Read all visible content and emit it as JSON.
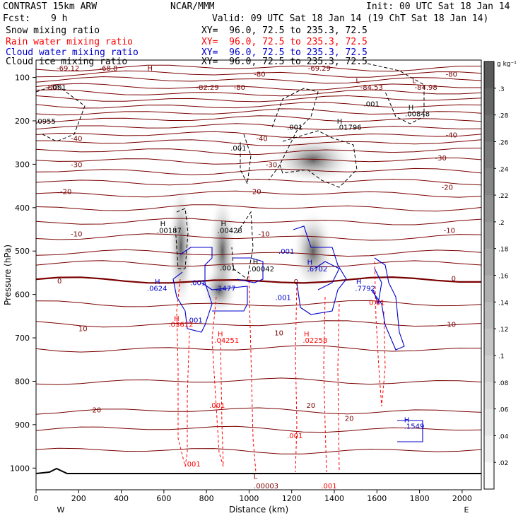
{
  "header": {
    "title": "CONTRAST 15km ARW",
    "fcst_label": "Fcst:",
    "fcst_value": "9 h",
    "center": "NCAR/MMM",
    "init": "Init: 00 UTC Sat 18 Jan 14",
    "valid": "Valid: 09 UTC Sat 18 Jan 14 (19 ChT Sat 18 Jan 14)"
  },
  "fields": [
    {
      "name": "Snow mixing ratio",
      "xy": "XY=  96.0, 72.5 to 235.3, 72.5",
      "color": "#000000"
    },
    {
      "name": "Rain water mixing ratio",
      "xy": "XY=  96.0, 72.5 to 235.3, 72.5",
      "color": "#ff0000"
    },
    {
      "name": "Cloud water mixing ratio",
      "xy": "XY=  96.0, 72.5 to 235.3, 72.5",
      "color": "#0000cc"
    },
    {
      "name": "Cloud ice mixing ratio",
      "xy": "XY=  96.0, 72.5 to 235.3, 72.5",
      "color": "#000000"
    }
  ],
  "colorbar": {
    "units": "g kg⁻¹",
    "ticks": [
      ".3",
      ".28",
      ".26",
      ".24",
      ".22",
      ".2",
      ".18",
      ".16",
      ".14",
      ".12",
      ".1",
      ".08",
      ".06",
      ".04",
      ".02"
    ]
  },
  "chart_data": {
    "type": "contour",
    "xlabel": "Distance (km)",
    "ylabel": "Pressure (hPa)",
    "xlim": [
      0,
      2090
    ],
    "ylim": [
      1050,
      60
    ],
    "x_ticks": [
      0,
      200,
      400,
      600,
      800,
      1000,
      1200,
      1400,
      1600,
      1800,
      2000
    ],
    "y_ticks": [
      100,
      200,
      300,
      400,
      500,
      600,
      700,
      800,
      900,
      1000
    ],
    "x_end_labels": {
      "left": "W",
      "right": "E"
    },
    "temperature_contours": {
      "color": "#7a0000",
      "labels": [
        {
          "text": "-69.12",
          "x": 150,
          "p": 78
        },
        {
          "text": "-68.8",
          "x": 340,
          "p": 78
        },
        {
          "text": "-69.29",
          "x": 1330,
          "p": 78
        },
        {
          "text": "-80",
          "x": 1050,
          "p": 92
        },
        {
          "text": "-80",
          "x": 1950,
          "p": 92
        },
        {
          "text": "-80",
          "x": 70,
          "p": 122
        },
        {
          "text": "-82.29",
          "x": 805,
          "p": 122
        },
        {
          "text": "-80",
          "x": 955,
          "p": 122
        },
        {
          "text": "-84.53",
          "x": 1575,
          "p": 122
        },
        {
          "text": "-84.98",
          "x": 1830,
          "p": 122
        },
        {
          "text": "-40",
          "x": 190,
          "p": 240
        },
        {
          "text": "-40",
          "x": 1060,
          "p": 240
        },
        {
          "text": "-40",
          "x": 1950,
          "p": 232
        },
        {
          "text": "-30",
          "x": 190,
          "p": 300
        },
        {
          "text": "-30",
          "x": 1105,
          "p": 300
        },
        {
          "text": "-30",
          "x": 1900,
          "p": 285
        },
        {
          "text": "-20",
          "x": 140,
          "p": 362
        },
        {
          "text": "-20",
          "x": 1030,
          "p": 362
        },
        {
          "text": "-20",
          "x": 1930,
          "p": 352
        },
        {
          "text": "-10",
          "x": 190,
          "p": 460
        },
        {
          "text": "-10",
          "x": 1070,
          "p": 460
        },
        {
          "text": "-10",
          "x": 1940,
          "p": 452
        },
        {
          "text": "0",
          "x": 110,
          "p": 568
        },
        {
          "text": "0",
          "x": 1220,
          "p": 570
        },
        {
          "text": "0",
          "x": 1960,
          "p": 562
        },
        {
          "text": "10",
          "x": 220,
          "p": 678
        },
        {
          "text": "10",
          "x": 1140,
          "p": 688
        },
        {
          "text": "10",
          "x": 1950,
          "p": 668
        },
        {
          "text": "20",
          "x": 285,
          "p": 865
        },
        {
          "text": "20",
          "x": 1290,
          "p": 855
        },
        {
          "text": "20",
          "x": 1470,
          "p": 885
        }
      ]
    },
    "extrema_labels": [
      {
        "text": "H",
        "x": 535,
        "p": 78,
        "color": "#7a0000"
      },
      {
        "text": "L",
        "x": 1510,
        "p": 106,
        "color": "#7a0000"
      },
      {
        "text": "L",
        "x": 1775,
        "p": 106,
        "color": "#7a0000"
      },
      {
        "text": "L",
        "x": 1030,
        "p": 1018,
        "color": "#7a0000"
      },
      {
        "text": ".00003",
        "x": 1080,
        "p": 1040,
        "color": "#7a0000"
      },
      {
        "text": ".001",
        "x": 105,
        "p": 122,
        "color": "#000000"
      },
      {
        "text": ".0955",
        "x": 45,
        "p": 200,
        "color": "#000000"
      },
      {
        "text": ".001",
        "x": 1575,
        "p": 160,
        "color": "#000000"
      },
      {
        "text": "H",
        "x": 1760,
        "p": 168,
        "color": "#000000"
      },
      {
        "text": ".00848",
        "x": 1790,
        "p": 183,
        "color": "#000000"
      },
      {
        "text": ".001",
        "x": 1215,
        "p": 214,
        "color": "#000000"
      },
      {
        "text": "H",
        "x": 1425,
        "p": 200,
        "color": "#000000"
      },
      {
        "text": ".01796",
        "x": 1470,
        "p": 214,
        "color": "#000000"
      },
      {
        "text": ".001",
        "x": 950,
        "p": 262,
        "color": "#000000"
      },
      {
        "text": "H",
        "x": 595,
        "p": 436,
        "color": "#000000"
      },
      {
        "text": ".00187",
        "x": 625,
        "p": 452,
        "color": "#000000"
      },
      {
        "text": "H",
        "x": 880,
        "p": 436,
        "color": "#000000"
      },
      {
        "text": ".00428",
        "x": 910,
        "p": 452,
        "color": "#000000"
      },
      {
        "text": ".001",
        "x": 900,
        "p": 538,
        "color": "#000000"
      },
      {
        "text": "H",
        "x": 1030,
        "p": 524,
        "color": "#000000"
      },
      {
        "text": ".00042",
        "x": 1060,
        "p": 540,
        "color": "#000000"
      },
      {
        "text": ".001",
        "x": 1175,
        "p": 500,
        "color": "#0000cc"
      },
      {
        "text": "H",
        "x": 1285,
        "p": 525,
        "color": "#0000cc"
      },
      {
        "text": ".6702",
        "x": 1320,
        "p": 540,
        "color": "#0000cc"
      },
      {
        "text": "H",
        "x": 570,
        "p": 570,
        "color": "#0000cc"
      },
      {
        "text": ".0624",
        "x": 568,
        "p": 585,
        "color": "#0000cc"
      },
      {
        "text": ".001",
        "x": 760,
        "p": 572,
        "color": "#0000cc"
      },
      {
        "text": ".1477",
        "x": 890,
        "p": 585,
        "color": "#0000cc"
      },
      {
        "text": ".001",
        "x": 1160,
        "p": 606,
        "color": "#0000cc"
      },
      {
        "text": "H",
        "x": 1515,
        "p": 570,
        "color": "#0000cc"
      },
      {
        "text": ".7792",
        "x": 1545,
        "p": 585,
        "color": "#0000cc"
      },
      {
        "text": ".001",
        "x": 745,
        "p": 658,
        "color": "#0000cc"
      },
      {
        "text": "H",
        "x": 1740,
        "p": 888,
        "color": "#0000cc"
      },
      {
        "text": ".1549",
        "x": 1775,
        "p": 903,
        "color": "#0000cc"
      },
      {
        "text": "H",
        "x": 660,
        "p": 654,
        "color": "#ff0000"
      },
      {
        "text": ".03612",
        "x": 680,
        "p": 668,
        "color": "#ff0000"
      },
      {
        "text": "H",
        "x": 865,
        "p": 690,
        "color": "#ff0000"
      },
      {
        "text": ".04251",
        "x": 895,
        "p": 705,
        "color": "#ff0000"
      },
      {
        "text": "H",
        "x": 1270,
        "p": 690,
        "color": "#ff0000"
      },
      {
        "text": ".02258",
        "x": 1310,
        "p": 705,
        "color": "#ff0000"
      },
      {
        "text": ".001",
        "x": 850,
        "p": 855,
        "color": "#ff0000"
      },
      {
        "text": ".001",
        "x": 1215,
        "p": 925,
        "color": "#ff0000"
      },
      {
        "text": ".001",
        "x": 735,
        "p": 990,
        "color": "#ff0000"
      },
      {
        "text": ".001",
        "x": 1375,
        "p": 1040,
        "color": "#ff0000"
      },
      {
        "text": "0.01",
        "x": 1600,
        "p": 618,
        "color": "#ff0000"
      }
    ]
  }
}
